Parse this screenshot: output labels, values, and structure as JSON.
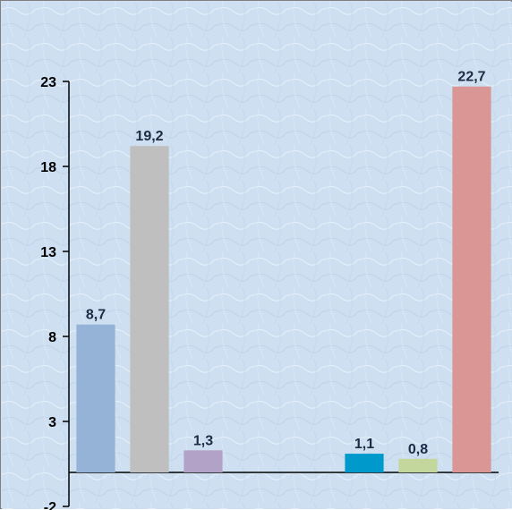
{
  "chart_data": {
    "type": "bar",
    "categories": [
      "",
      "",
      "",
      "",
      "",
      "",
      "",
      ""
    ],
    "values": [
      8.7,
      19.2,
      1.3,
      null,
      null,
      1.1,
      0.8,
      22.7
    ],
    "data_labels": [
      "8,7",
      "19,2",
      "1,3",
      "",
      "",
      "1,1",
      "0,8",
      "22,7"
    ],
    "bar_colors": [
      "#95b3d7",
      "#bfbfbf",
      "#b3a2c7",
      "#000000",
      "#000000",
      "#0099cc",
      "#c3d69b",
      "#d99694"
    ],
    "ylim": [
      -2,
      23
    ],
    "yticks": [
      -2,
      3,
      8,
      13,
      18,
      23
    ],
    "ytick_labels": [
      "-2",
      "3",
      "8",
      "13",
      "18",
      "23"
    ],
    "title": "",
    "xlabel": "",
    "ylabel": "",
    "grid": false,
    "legend": "none",
    "background": "#cfe0f2",
    "axis_color": "#000000"
  }
}
